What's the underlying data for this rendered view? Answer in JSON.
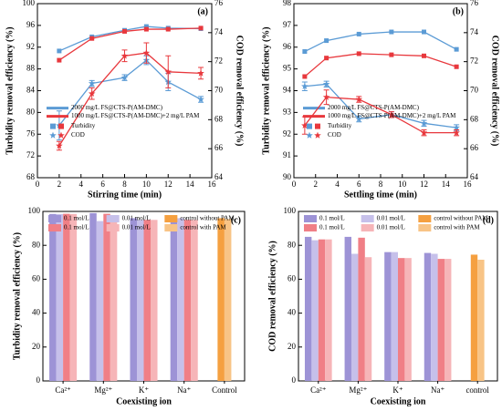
{
  "chart_data": [
    {
      "type": "line",
      "panel": "(a)",
      "x_label": "Stirring time (min)",
      "y_label": "Turbidity removal efficiency (%)",
      "y2_label": "COD removal efficiency (%)",
      "xlim": [
        0,
        16
      ],
      "xticks": [
        0,
        2,
        4,
        6,
        8,
        10,
        12,
        14,
        16
      ],
      "ylim": [
        68,
        100
      ],
      "yticks": [
        68,
        72,
        76,
        80,
        84,
        88,
        92,
        96,
        100
      ],
      "y2lim": [
        64,
        76
      ],
      "y2ticks": [
        64,
        66,
        68,
        70,
        72,
        74,
        76
      ],
      "markers": [
        "Turbidity",
        "COD"
      ],
      "x": [
        2,
        5,
        8,
        10,
        12,
        15
      ],
      "series": [
        {
          "name": "2000 mg/L FS@CTS-P(AM-DMC)",
          "color": "#5b9bd5",
          "turbidity": [
            91.3,
            93.9,
            95.1,
            95.8,
            95.5,
            95.4
          ],
          "cod": [
            67.6,
            70.5,
            70.9,
            72.1,
            70.6,
            69.4
          ],
          "cod_errors": [
            1.0,
            0.2,
            0.2,
            0.3,
            0.6,
            0.2
          ]
        },
        {
          "name": "1000 mg/L FS@CTS-P(AM-DMC)+2 mg/L PAM",
          "color": "#e8383d",
          "turbidity": [
            89.6,
            93.6,
            94.9,
            95.3,
            95.3,
            95.5
          ],
          "cod": [
            66.2,
            69.8,
            72.4,
            72.6,
            71.3,
            71.2
          ],
          "cod_errors": [
            0.3,
            0.4,
            0.4,
            0.7,
            1.1,
            0.4
          ]
        }
      ]
    },
    {
      "type": "line",
      "panel": "(b)",
      "x_label": "Settling time (min)",
      "y_label": "Turbidity removal efficiency (%)",
      "y2_label": "COD removal efficiency (%)",
      "xlim": [
        0,
        16
      ],
      "xticks": [
        0,
        2,
        4,
        6,
        8,
        10,
        12,
        14,
        16
      ],
      "ylim": [
        90,
        98
      ],
      "yticks": [
        90,
        91,
        92,
        93,
        94,
        95,
        96,
        97,
        98
      ],
      "y2lim": [
        64,
        76
      ],
      "y2ticks": [
        64,
        66,
        68,
        70,
        72,
        74,
        76
      ],
      "markers": [
        "Turbidity",
        "COD"
      ],
      "x": [
        1,
        3,
        6,
        9,
        12,
        15
      ],
      "series": [
        {
          "name": "2000 mg/L FS@CTS-P(AM-DMC)",
          "color": "#5b9bd5",
          "turbidity": [
            95.8,
            96.3,
            96.6,
            96.7,
            96.7,
            95.9
          ],
          "cod": [
            70.3,
            70.45,
            68.05,
            68.35,
            67.75,
            67.45
          ],
          "cod_errors": [
            0.3,
            0.2,
            0.2,
            0.2,
            0.2,
            0.2
          ]
        },
        {
          "name": "1000 mg/L FS@CTS-P(AM-DMC)+2 mg/L PAM",
          "color": "#e8383d",
          "turbidity": [
            94.65,
            95.5,
            95.7,
            95.65,
            95.6,
            95.1
          ],
          "cod": [
            67.6,
            69.55,
            69.4,
            68.35,
            67.1,
            67.1
          ],
          "cod_errors": [
            0.6,
            0.5,
            0.2,
            0.2,
            0.2,
            0.2
          ]
        }
      ]
    },
    {
      "type": "bar",
      "panel": "(c)",
      "x_label": "Coexisting ion",
      "y_label": "Turbidity removal efficiency (%)",
      "ylim": [
        0,
        100
      ],
      "yticks": [
        0,
        20,
        40,
        60,
        80,
        100
      ],
      "categories": [
        "Ca²⁺",
        "Mg²⁺",
        "K⁺",
        "Na⁺",
        "Control"
      ],
      "series": [
        {
          "name": "0.1 mol/L",
          "color": "#9d93d6",
          "values": [
            98.5,
            99,
            96,
            96.5,
            null
          ]
        },
        {
          "name": "0.01 mol/L",
          "color": "#c6c0ea",
          "values": [
            98.5,
            94.3,
            95,
            96,
            null
          ]
        },
        {
          "name": "0.1 mol/L",
          "color": "#f07f86",
          "values": [
            98.6,
            98.6,
            95,
            95,
            null
          ]
        },
        {
          "name": "0.01 mol/L",
          "color": "#f6b5b8",
          "values": [
            98.5,
            95,
            95,
            95,
            null
          ]
        },
        {
          "name": "control without PAM",
          "color": "#f5a040",
          "values": [
            null,
            null,
            null,
            null,
            96
          ]
        },
        {
          "name": "control with PAM",
          "color": "#f8c486",
          "values": [
            null,
            null,
            null,
            null,
            95.5
          ]
        }
      ]
    },
    {
      "type": "bar",
      "panel": "(d)",
      "x_label": "Coexisting ion",
      "y_label": "COD removal efficiency (%)",
      "ylim": [
        0,
        100
      ],
      "yticks": [
        0,
        20,
        40,
        60,
        80,
        100
      ],
      "categories": [
        "Ca²⁺",
        "Mg²⁺",
        "K⁺",
        "Na⁺",
        "control"
      ],
      "series": [
        {
          "name": "0.1 mol/L",
          "color": "#9d93d6",
          "values": [
            85,
            85,
            76,
            75.5,
            null
          ]
        },
        {
          "name": "0.01 mol/L",
          "color": "#c6c0ea",
          "values": [
            83,
            75,
            76,
            75,
            null
          ]
        },
        {
          "name": "0.1 mol/L",
          "color": "#f07f86",
          "values": [
            83.5,
            84.5,
            72.5,
            72,
            null
          ]
        },
        {
          "name": "0.01 mol/L",
          "color": "#f6b5b8",
          "values": [
            83.5,
            73,
            72.5,
            72,
            null
          ]
        },
        {
          "name": "control without PAM",
          "color": "#f5a040",
          "values": [
            null,
            null,
            null,
            null,
            74.5
          ]
        },
        {
          "name": "control with PAM",
          "color": "#f8c486",
          "values": [
            null,
            null,
            null,
            null,
            71.5
          ]
        }
      ]
    }
  ]
}
